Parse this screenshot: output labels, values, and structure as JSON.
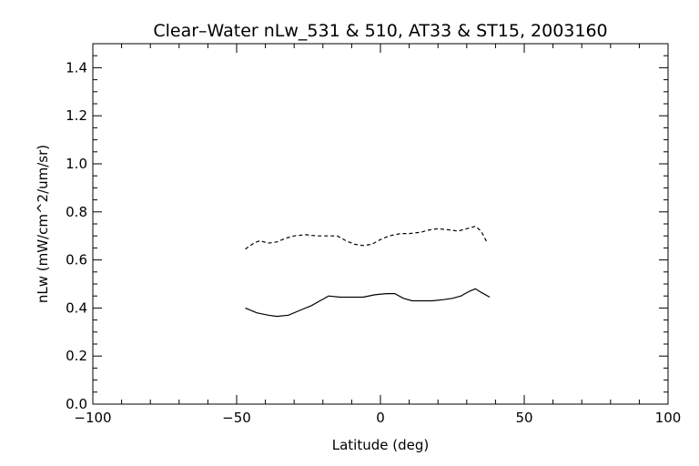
{
  "chart_data": {
    "type": "line",
    "title": "Clear–Water nLw_531 & 510, AT33 & ST15, 2003160",
    "xlabel": "Latitude (deg)",
    "ylabel": "nLw (mW/cm^2/um/sr)",
    "xlim": [
      -100,
      100
    ],
    "ylim": [
      0.0,
      1.5
    ],
    "xticks": [
      -100,
      -50,
      0,
      50,
      100
    ],
    "xtick_labels": [
      "−100",
      "−50",
      "0",
      "50",
      "100"
    ],
    "yticks": [
      0.0,
      0.2,
      0.4,
      0.6,
      0.8,
      1.0,
      1.2,
      1.4
    ],
    "ytick_labels": [
      "0.0",
      "0.2",
      "0.4",
      "0.6",
      "0.8",
      "1.0",
      "1.2",
      "1.4"
    ],
    "grid": false,
    "series": [
      {
        "style": "dashed",
        "color": "#000000",
        "x": [
          -47,
          -44,
          -42,
          -39,
          -36,
          -33,
          -30,
          -26,
          -22,
          -18,
          -15,
          -12,
          -9,
          -6,
          -3,
          0,
          3,
          7,
          10,
          14,
          17,
          20,
          24,
          27,
          30,
          33,
          35,
          37
        ],
        "y": [
          0.645,
          0.67,
          0.68,
          0.67,
          0.675,
          0.69,
          0.7,
          0.705,
          0.7,
          0.7,
          0.7,
          0.68,
          0.665,
          0.66,
          0.665,
          0.685,
          0.7,
          0.71,
          0.71,
          0.715,
          0.725,
          0.73,
          0.725,
          0.72,
          0.73,
          0.74,
          0.72,
          0.675
        ]
      },
      {
        "style": "solid",
        "color": "#000000",
        "x": [
          -47,
          -43,
          -39,
          -36,
          -32,
          -28,
          -24,
          -21,
          -18,
          -14,
          -10,
          -6,
          -2,
          2,
          5,
          8,
          11,
          15,
          18,
          22,
          25,
          28,
          31,
          33,
          35,
          38
        ],
        "y": [
          0.4,
          0.38,
          0.37,
          0.365,
          0.37,
          0.39,
          0.41,
          0.43,
          0.45,
          0.445,
          0.445,
          0.445,
          0.455,
          0.46,
          0.46,
          0.44,
          0.43,
          0.43,
          0.43,
          0.435,
          0.44,
          0.45,
          0.47,
          0.48,
          0.465,
          0.445
        ]
      }
    ]
  }
}
